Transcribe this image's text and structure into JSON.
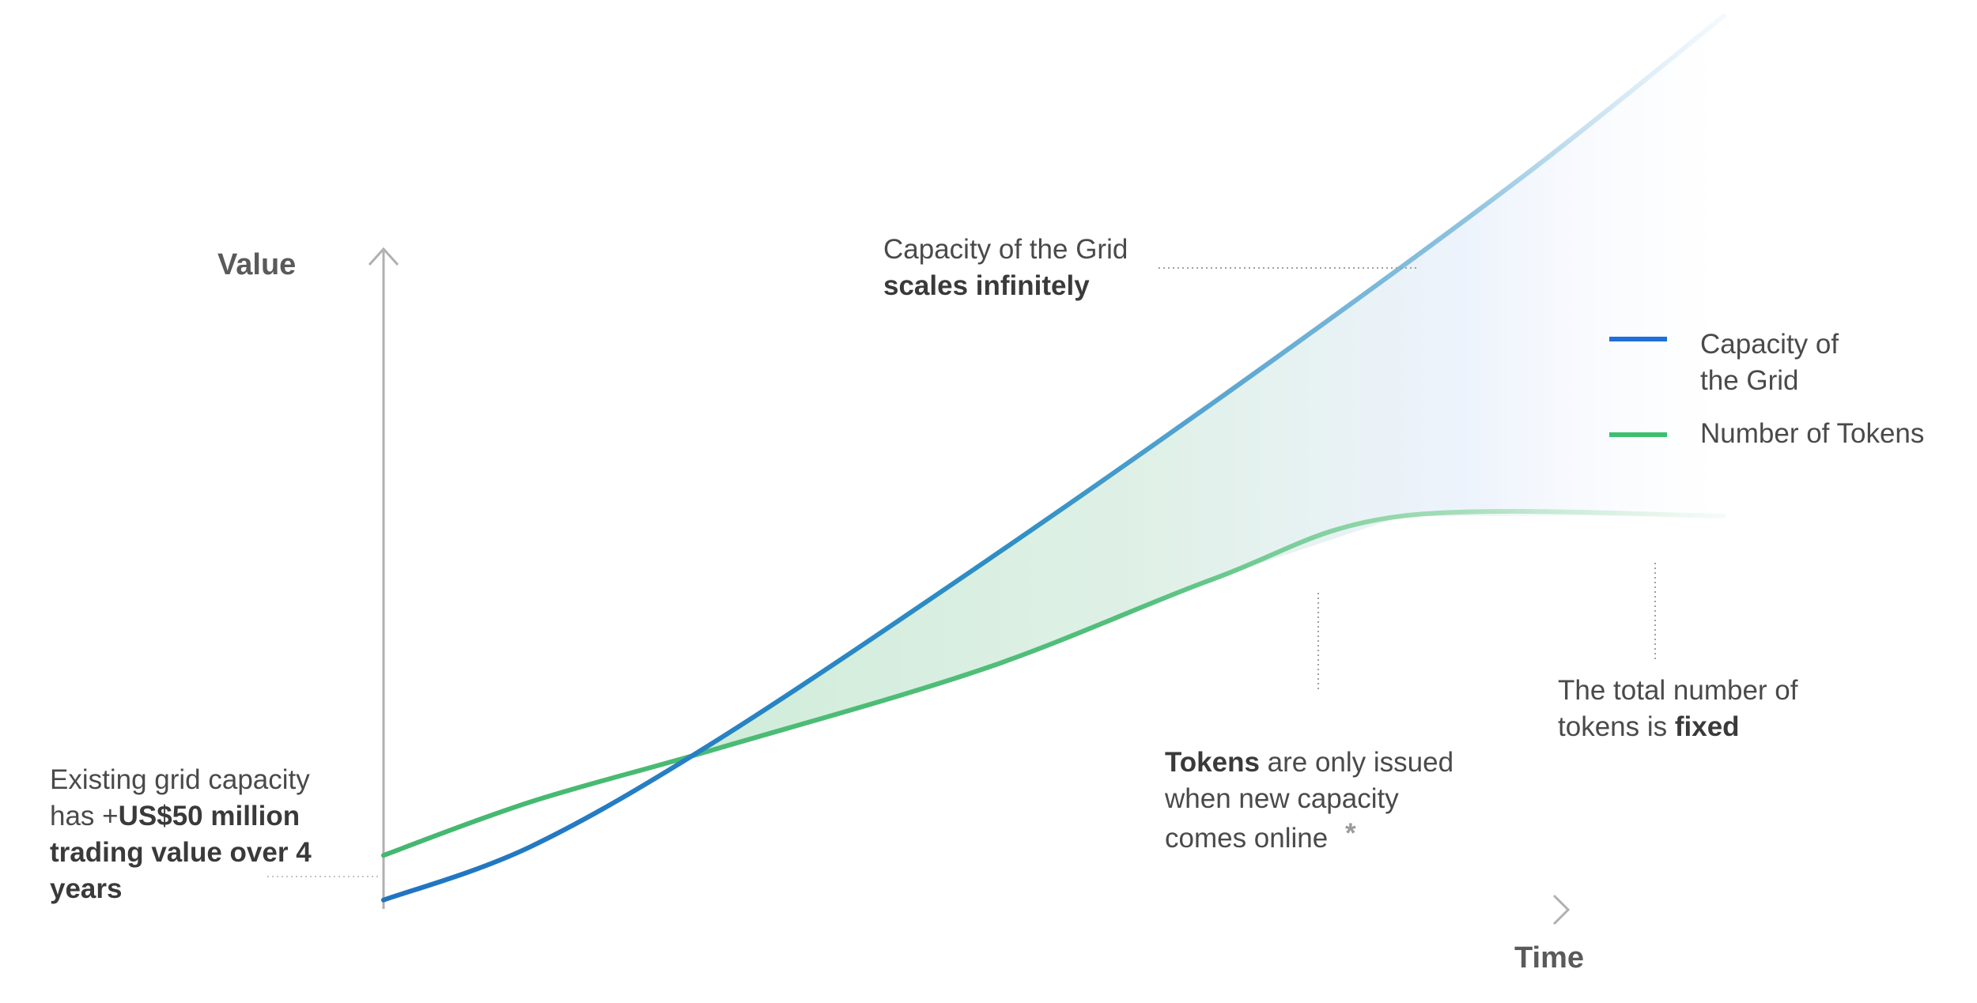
{
  "chart_data": {
    "type": "line",
    "xlabel": "Time",
    "ylabel": "Value",
    "grid": false,
    "legend": "right",
    "series": [
      {
        "name": "Capacity of the Grid",
        "legend_lines": [
          "Capacity of",
          "the Grid"
        ],
        "color": "#1e6fd9",
        "shape": "rises from near zero, crosses the token line early, then grows linearly without limit",
        "points": [
          [
            0,
            0.01
          ],
          [
            0.11,
            0.07
          ],
          [
            0.25,
            0.19
          ],
          [
            0.45,
            0.39
          ],
          [
            0.65,
            0.6
          ],
          [
            0.85,
            0.82
          ],
          [
            1.0,
            1.0
          ]
        ]
      },
      {
        "name": "Number of Tokens",
        "legend_lines": [
          "Number of Tokens"
        ],
        "color": "#3dbf72",
        "shape": "starts above capacity, rises steadily, then flattens to a fixed total",
        "points": [
          [
            0,
            0.06
          ],
          [
            0.11,
            0.12
          ],
          [
            0.25,
            0.18
          ],
          [
            0.45,
            0.27
          ],
          [
            0.62,
            0.37
          ],
          [
            0.76,
            0.44
          ],
          [
            1.0,
            0.44
          ]
        ]
      }
    ],
    "annotations": {
      "grid_scales": {
        "line1": "Capacity of the Grid",
        "bold": "scales infinitely"
      },
      "tokens_issued": {
        "bold": "Tokens",
        "rest1": " are only issued",
        "line2": "when new capacity",
        "line3": "comes online",
        "star": "*"
      },
      "tokens_fixed": {
        "line1": "The total number of",
        "pre2": "tokens is ",
        "bold": "fixed"
      },
      "existing": {
        "line1": "Existing grid capacity",
        "pre2": "has +",
        "bold2": "US$50 million",
        "line3": "trading value over 4",
        "line4": "years"
      }
    }
  }
}
